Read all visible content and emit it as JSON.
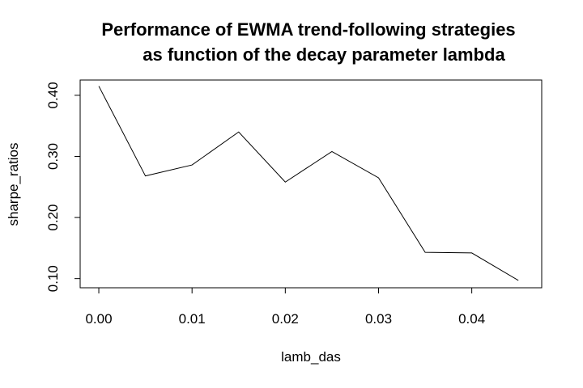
{
  "chart_data": {
    "type": "line",
    "title": "Performance of EWMA trend-following strategies",
    "title_line2": "as function of the decay parameter lambda",
    "xlabel": "lamb_das",
    "ylabel": "sharpe_ratios",
    "x": [
      0.0,
      0.005,
      0.01,
      0.015,
      0.02,
      0.025,
      0.03,
      0.035,
      0.04,
      0.045
    ],
    "series": [
      {
        "values": [
          0.415,
          0.268,
          0.286,
          0.34,
          0.258,
          0.308,
          0.265,
          0.143,
          0.142,
          0.097
        ]
      }
    ],
    "xlim": [
      -0.002,
      0.0475
    ],
    "ylim": [
      0.085,
      0.425
    ],
    "xticks": [
      0.0,
      0.01,
      0.02,
      0.03,
      0.04
    ],
    "xtick_labels": [
      "0.00",
      "0.01",
      "0.02",
      "0.03",
      "0.04"
    ],
    "yticks": [
      0.1,
      0.2,
      0.3,
      0.4
    ],
    "ytick_labels": [
      "0.10",
      "0.20",
      "0.30",
      "0.40"
    ],
    "grid": false,
    "line_color": "#000000"
  }
}
